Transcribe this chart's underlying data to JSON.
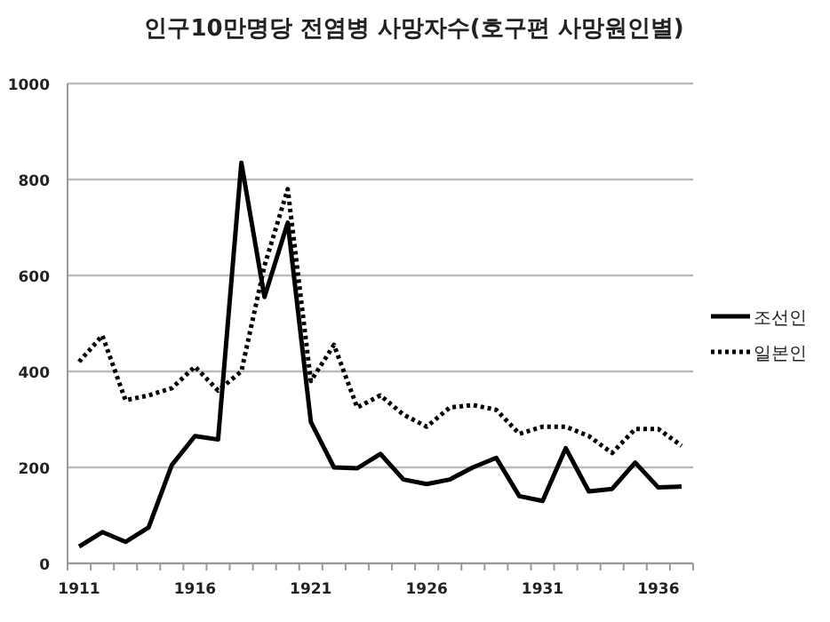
{
  "chart_data": {
    "type": "line",
    "title": "인구10만명당 전염병 사망자수(호구편 사망원인별)",
    "categories": [
      "1911",
      null,
      null,
      null,
      null,
      "1916",
      null,
      null,
      null,
      null,
      "1921",
      null,
      null,
      null,
      null,
      "1926",
      null,
      null,
      null,
      null,
      "1931",
      null,
      null,
      null,
      null,
      "1936",
      null
    ],
    "series": [
      {
        "name": "조선인",
        "color": "#000000",
        "line_style": "solid",
        "values": [
          35,
          65,
          45,
          75,
          205,
          265,
          258,
          835,
          555,
          710,
          295,
          200,
          198,
          228,
          175,
          165,
          175,
          200,
          220,
          140,
          130,
          240,
          150,
          155,
          210,
          158,
          160
        ]
      },
      {
        "name": "일본인",
        "color": "#000000",
        "line_style": "dotted",
        "values": [
          420,
          475,
          340,
          350,
          365,
          410,
          360,
          400,
          620,
          780,
          380,
          455,
          325,
          350,
          310,
          285,
          325,
          330,
          320,
          270,
          285,
          285,
          265,
          230,
          280,
          280,
          245
        ]
      }
    ],
    "ylim": [
      0,
      1000
    ],
    "yticks": [
      0,
      200,
      400,
      600,
      800,
      1000
    ],
    "grid": "y",
    "legend": "right",
    "marker": "none"
  }
}
